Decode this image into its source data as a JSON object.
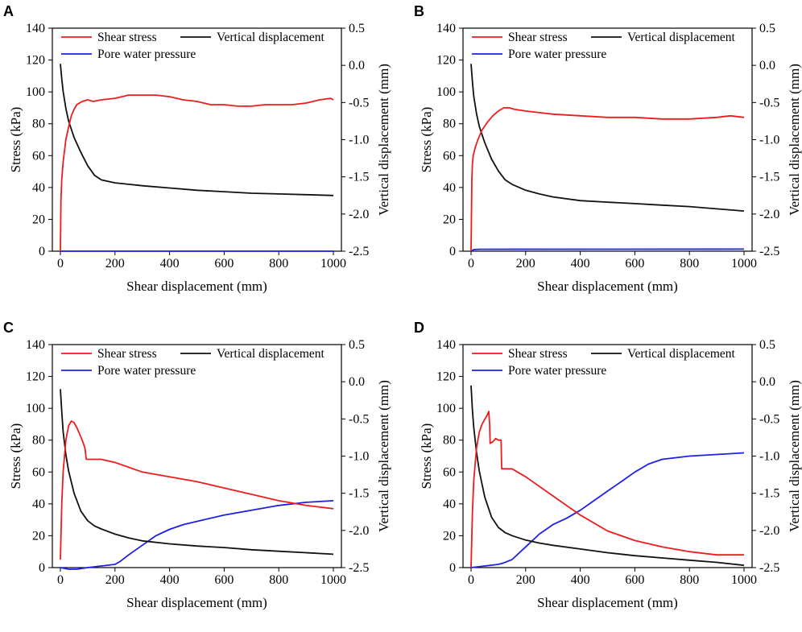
{
  "figure": {
    "legend": {
      "shear_stress": "Shear stress",
      "vertical_displacement": "Vertical displacement",
      "pore_water_pressure": "Pore water pressure"
    },
    "colors": {
      "shear_stress": "#ee1c1c",
      "vertical_displacement": "#111111",
      "pore_water_pressure": "#1f1fe6"
    }
  },
  "chart_data": [
    {
      "panel": "A",
      "type": "line",
      "xlabel": "Shear displacement (mm)",
      "ylabel": "Stress (kPa)",
      "y2label": "Vertical displacement (mm)",
      "xlim": [
        0,
        1000
      ],
      "ylim": [
        0,
        140
      ],
      "y2lim": [
        -2.5,
        0.5
      ],
      "xticks": [
        "0",
        "200",
        "400",
        "600",
        "800",
        "1000"
      ],
      "yticks": [
        "0",
        "20",
        "40",
        "60",
        "80",
        "100",
        "120",
        "140"
      ],
      "y2ticks": [
        "-2.5",
        "-2.0",
        "-1.5",
        "-1.0",
        "-0.5",
        "0.0",
        "0.5"
      ],
      "series": [
        {
          "name": "Shear stress",
          "axis": "left",
          "x": [
            0,
            2,
            5,
            10,
            20,
            30,
            40,
            50,
            60,
            80,
            100,
            120,
            150,
            200,
            250,
            300,
            350,
            400,
            450,
            500,
            550,
            600,
            650,
            700,
            750,
            800,
            850,
            900,
            950,
            990,
            1000
          ],
          "y": [
            0,
            32,
            45,
            56,
            70,
            78,
            85,
            89,
            92,
            94,
            95,
            94,
            95,
            96,
            98,
            98,
            98,
            97,
            95,
            94,
            92,
            92,
            91,
            91,
            92,
            92,
            92,
            93,
            95,
            96,
            95
          ]
        },
        {
          "name": "Vertical displacement",
          "axis": "right",
          "x": [
            0,
            5,
            10,
            20,
            30,
            50,
            75,
            100,
            125,
            150,
            200,
            250,
            300,
            400,
            500,
            600,
            700,
            800,
            900,
            1000
          ],
          "y": [
            0.02,
            -0.18,
            -0.35,
            -0.58,
            -0.75,
            -0.97,
            -1.17,
            -1.35,
            -1.48,
            -1.54,
            -1.58,
            -1.6,
            -1.62,
            -1.65,
            -1.68,
            -1.7,
            -1.72,
            -1.73,
            -1.74,
            -1.75
          ]
        },
        {
          "name": "Pore water pressure",
          "axis": "left",
          "x": [
            0,
            1000
          ],
          "y": [
            0,
            0
          ]
        }
      ]
    },
    {
      "panel": "B",
      "type": "line",
      "xlabel": "Shear displacement (mm)",
      "ylabel": "Stress (kPa)",
      "y2label": "Vertical displacement (mm)",
      "xlim": [
        0,
        1000
      ],
      "ylim": [
        0,
        140
      ],
      "y2lim": [
        -2.5,
        0.5
      ],
      "xticks": [
        "0",
        "200",
        "400",
        "600",
        "800",
        "1000"
      ],
      "yticks": [
        "0",
        "20",
        "40",
        "60",
        "80",
        "100",
        "120",
        "140"
      ],
      "y2ticks": [
        "-2.5",
        "-2.0",
        "-1.5",
        "-1.0",
        "-0.5",
        "0.0",
        "0.5"
      ],
      "series": [
        {
          "name": "Shear stress",
          "axis": "left",
          "x": [
            0,
            3,
            5,
            8,
            15,
            25,
            40,
            60,
            80,
            100,
            120,
            140,
            160,
            200,
            250,
            300,
            400,
            500,
            600,
            700,
            800,
            900,
            950,
            1000
          ],
          "y": [
            0,
            45,
            55,
            60,
            65,
            70,
            76,
            81,
            85,
            88,
            90,
            90,
            89,
            88,
            87,
            86,
            85,
            84,
            84,
            83,
            83,
            84,
            85,
            84
          ]
        },
        {
          "name": "Vertical displacement",
          "axis": "right",
          "x": [
            0,
            5,
            10,
            20,
            30,
            50,
            75,
            100,
            125,
            150,
            200,
            250,
            300,
            400,
            500,
            600,
            700,
            800,
            900,
            1000
          ],
          "y": [
            0.02,
            -0.22,
            -0.42,
            -0.65,
            -0.82,
            -1.04,
            -1.26,
            -1.42,
            -1.54,
            -1.6,
            -1.68,
            -1.73,
            -1.77,
            -1.82,
            -1.84,
            -1.86,
            -1.88,
            -1.9,
            -1.93,
            -1.96
          ]
        },
        {
          "name": "Pore water pressure",
          "axis": "left",
          "x": [
            0,
            10,
            30,
            1000
          ],
          "y": [
            0,
            1,
            1.2,
            1.3
          ]
        }
      ]
    },
    {
      "panel": "C",
      "type": "line",
      "xlabel": "Shear displacement (mm)",
      "ylabel": "Stress (kPa)",
      "y2label": "Vertical displacement (mm)",
      "xlim": [
        0,
        1000
      ],
      "ylim": [
        0,
        140
      ],
      "y2lim": [
        -2.5,
        0.5
      ],
      "xticks": [
        "0",
        "200",
        "400",
        "600",
        "800",
        "1000"
      ],
      "yticks": [
        "0",
        "20",
        "40",
        "60",
        "80",
        "100",
        "120",
        "140"
      ],
      "y2ticks": [
        "-2.5",
        "-2.0",
        "-1.5",
        "-1.0",
        "-0.5",
        "0.0",
        "0.5"
      ],
      "series": [
        {
          "name": "Shear stress",
          "axis": "left",
          "x": [
            0,
            5,
            10,
            20,
            30,
            40,
            50,
            60,
            70,
            80,
            90,
            95,
            100,
            150,
            200,
            300,
            400,
            500,
            600,
            700,
            800,
            900,
            1000
          ],
          "y": [
            5,
            40,
            60,
            80,
            89,
            92,
            91,
            88,
            84,
            80,
            75,
            68,
            68,
            68,
            66,
            60,
            57,
            54,
            50,
            46,
            42,
            39,
            37
          ]
        },
        {
          "name": "Vertical displacement",
          "axis": "right",
          "x": [
            0,
            5,
            10,
            20,
            30,
            50,
            75,
            100,
            125,
            150,
            200,
            250,
            300,
            400,
            500,
            600,
            700,
            800,
            900,
            1000
          ],
          "y": [
            -0.1,
            -0.4,
            -0.67,
            -0.98,
            -1.2,
            -1.5,
            -1.74,
            -1.87,
            -1.94,
            -1.98,
            -2.05,
            -2.1,
            -2.14,
            -2.18,
            -2.21,
            -2.23,
            -2.26,
            -2.28,
            -2.3,
            -2.32
          ]
        },
        {
          "name": "Pore water pressure",
          "axis": "left",
          "x": [
            0,
            30,
            60,
            100,
            150,
            200,
            220,
            250,
            300,
            350,
            400,
            450,
            500,
            600,
            700,
            800,
            900,
            1000
          ],
          "y": [
            0,
            -1,
            -1,
            0,
            1,
            2,
            4,
            8,
            14,
            20,
            24,
            27,
            29,
            33,
            36,
            39,
            41,
            42
          ]
        }
      ]
    },
    {
      "panel": "D",
      "type": "line",
      "xlabel": "Shear displacement (mm)",
      "ylabel": "Stress (kPa)",
      "y2label": "Vertical displacement (mm)",
      "xlim": [
        0,
        1000
      ],
      "ylim": [
        0,
        140
      ],
      "y2lim": [
        -2.5,
        0.5
      ],
      "xticks": [
        "0",
        "200",
        "400",
        "600",
        "800",
        "1000"
      ],
      "yticks": [
        "0",
        "20",
        "40",
        "60",
        "80",
        "100",
        "120",
        "140"
      ],
      "y2ticks": [
        "-2.5",
        "-2.0",
        "-1.5",
        "-1.0",
        "-0.5",
        "0.0",
        "0.5"
      ],
      "series": [
        {
          "name": "Shear stress",
          "axis": "left",
          "x": [
            0,
            5,
            10,
            20,
            30,
            40,
            50,
            60,
            65,
            68,
            70,
            80,
            90,
            100,
            110,
            112,
            120,
            150,
            200,
            300,
            400,
            500,
            600,
            700,
            800,
            900,
            950,
            1000
          ],
          "y": [
            0,
            35,
            55,
            75,
            85,
            90,
            93,
            96,
            98,
            90,
            78,
            79,
            81,
            80,
            80,
            62,
            62,
            62,
            57,
            45,
            33,
            23,
            17,
            13,
            10,
            8,
            8,
            8
          ]
        },
        {
          "name": "Vertical displacement",
          "axis": "right",
          "x": [
            0,
            5,
            10,
            20,
            30,
            50,
            75,
            100,
            125,
            150,
            200,
            250,
            300,
            400,
            500,
            600,
            700,
            800,
            900,
            1000
          ],
          "y": [
            -0.05,
            -0.38,
            -0.62,
            -0.95,
            -1.2,
            -1.55,
            -1.82,
            -1.96,
            -2.03,
            -2.07,
            -2.13,
            -2.17,
            -2.2,
            -2.25,
            -2.3,
            -2.34,
            -2.37,
            -2.4,
            -2.43,
            -2.47
          ]
        },
        {
          "name": "Pore water pressure",
          "axis": "left",
          "x": [
            0,
            50,
            100,
            120,
            150,
            200,
            250,
            300,
            350,
            400,
            450,
            500,
            550,
            600,
            650,
            700,
            750,
            800,
            900,
            1000
          ],
          "y": [
            0,
            1,
            2,
            3,
            5,
            13,
            21,
            27,
            31,
            36,
            42,
            48,
            54,
            60,
            65,
            68,
            69,
            70,
            71,
            72
          ]
        }
      ]
    }
  ]
}
